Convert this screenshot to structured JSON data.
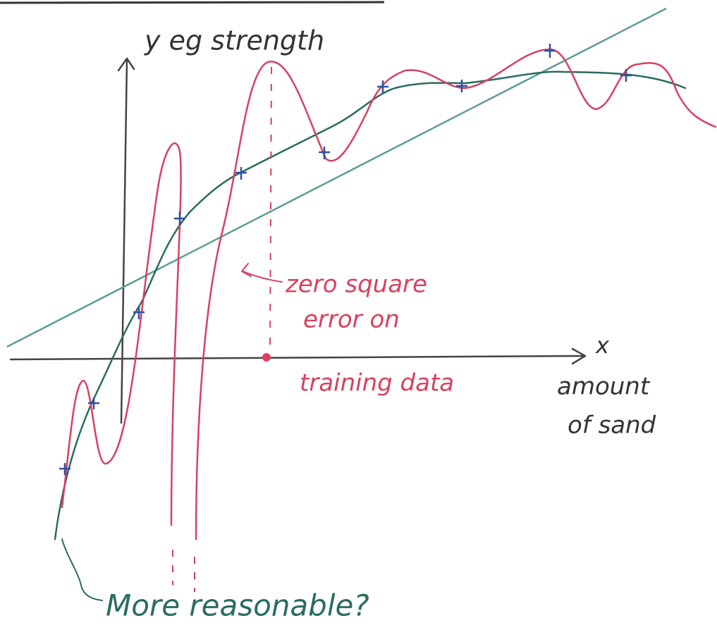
{
  "axes": {
    "y_label": "y eg strength",
    "x_label": "x",
    "x_caption": [
      "amount",
      "of sand"
    ]
  },
  "annotations": {
    "overfit": [
      "zero square",
      "error on",
      "training data"
    ],
    "smooth": "More reasonable?"
  }
}
